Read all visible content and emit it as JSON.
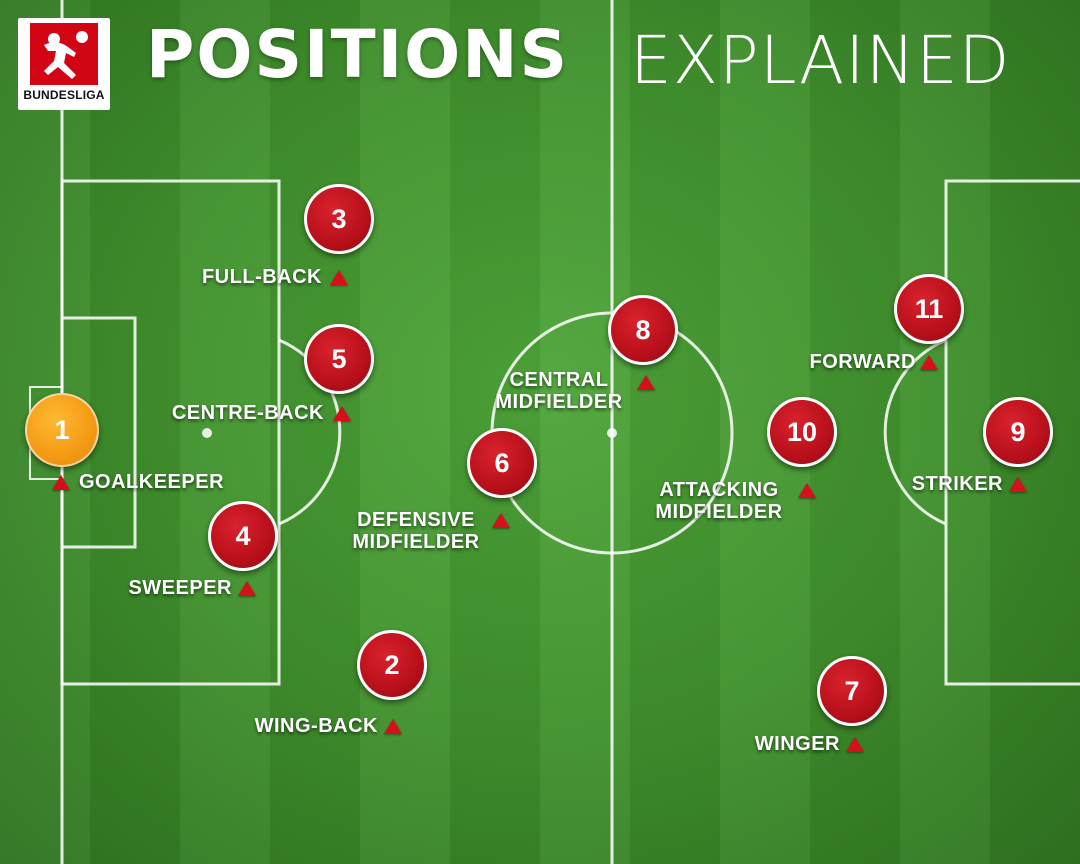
{
  "brand": {
    "logo_text": "BUNDESLIGA",
    "accent_color": "#d20515"
  },
  "header": {
    "title_bold": "POSITIONS",
    "title_light": "EXPLAINED"
  },
  "colors": {
    "pitch_green": "#3f8f2c",
    "marker_red": "#c0121d",
    "goalkeeper_orange": "#f49a14",
    "line_white": "#ffffff"
  },
  "positions": [
    {
      "number": "1",
      "label_lines": [
        "GOALKEEPER"
      ]
    },
    {
      "number": "2",
      "label_lines": [
        "WING-BACK"
      ]
    },
    {
      "number": "3",
      "label_lines": [
        "FULL-BACK"
      ]
    },
    {
      "number": "4",
      "label_lines": [
        "SWEEPER"
      ]
    },
    {
      "number": "5",
      "label_lines": [
        "CENTRE-BACK"
      ]
    },
    {
      "number": "6",
      "label_lines": [
        "DEFENSIVE",
        "MIDFIELDER"
      ]
    },
    {
      "number": "7",
      "label_lines": [
        "WINGER"
      ]
    },
    {
      "number": "8",
      "label_lines": [
        "CENTRAL",
        "MIDFIELDER"
      ]
    },
    {
      "number": "9",
      "label_lines": [
        "STRIKER"
      ]
    },
    {
      "number": "10",
      "label_lines": [
        "ATTACKING",
        "MIDFIELDER"
      ]
    },
    {
      "number": "11",
      "label_lines": [
        "FORWARD"
      ]
    }
  ]
}
